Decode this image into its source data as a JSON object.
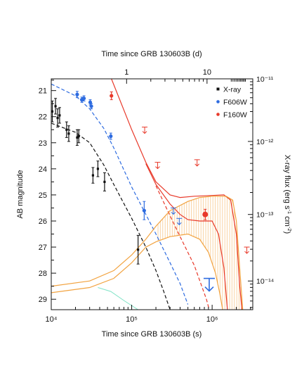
{
  "chart_data": {
    "type": "scatter",
    "title": "",
    "xlabel_bottom": "Time since GRB 130603B (s)",
    "xlabel_top": "Time since GRB 130603B (d)",
    "ylabel_left": "AB magnitude",
    "ylabel_right_parts": [
      "X-ray flux (erg s",
      "-1",
      " cm",
      "-2",
      ")"
    ],
    "x_scale": "log",
    "xlim": [
      10000,
      3200000
    ],
    "ylim_mag": [
      29.4,
      20.55
    ],
    "x_ticks": [
      {
        "value": 10000,
        "label": "10⁴"
      },
      {
        "value": 100000,
        "label": "10⁵"
      },
      {
        "value": 1000000,
        "label": "10⁶"
      }
    ],
    "x_top_ticks": [
      {
        "value": 86400,
        "label": "1"
      },
      {
        "value": 864000,
        "label": "10"
      }
    ],
    "y_ticks": [
      21,
      22,
      23,
      24,
      25,
      26,
      27,
      28,
      29
    ],
    "right_ticks": [
      {
        "mag": 20.55,
        "label": "10⁻¹¹"
      },
      {
        "mag": 22.95,
        "label": "10⁻¹²"
      },
      {
        "mag": 25.75,
        "label": "10⁻¹³"
      },
      {
        "mag": 28.3,
        "label": "10⁻¹⁴"
      }
    ],
    "colors": {
      "xray": "#111111",
      "f606w": "#2d6be0",
      "f160w": "#e8392a",
      "orange": "#f2a340",
      "cyan": "#7fe3c6"
    },
    "legend": {
      "position": "top-right",
      "items": [
        {
          "label": "X-ray",
          "color": "#111111"
        },
        {
          "label": "F606W",
          "color": "#2d6be0"
        },
        {
          "label": "F160W",
          "color": "#e8392a"
        }
      ]
    },
    "series": [
      {
        "name": "X-ray",
        "color": "#111111",
        "points": [
          {
            "x": 10300,
            "y": 21.8,
            "yerr": 0.4
          },
          {
            "x": 11300,
            "y": 21.6,
            "yerr": 0.3
          },
          {
            "x": 12000,
            "y": 22.05,
            "yerr": 0.35
          },
          {
            "x": 12700,
            "y": 21.95,
            "yerr": 0.3
          },
          {
            "x": 15500,
            "y": 22.5,
            "yerr": 0.3
          },
          {
            "x": 16500,
            "y": 22.65,
            "yerr": 0.3
          },
          {
            "x": 21000,
            "y": 22.8,
            "yerr": 0.3
          },
          {
            "x": 22000,
            "y": 22.75,
            "yerr": 0.25
          },
          {
            "x": 33000,
            "y": 24.25,
            "yerr": 0.3
          },
          {
            "x": 38000,
            "y": 24.0,
            "yerr": 0.3
          },
          {
            "x": 46000,
            "y": 24.5,
            "yerr": 0.35
          },
          {
            "x": 120000,
            "y": 27.1,
            "yerr": 0.55
          }
        ]
      },
      {
        "name": "F606W",
        "color": "#2d6be0",
        "points": [
          {
            "x": 21000,
            "y": 21.15,
            "yerr": 0.12
          },
          {
            "x": 24000,
            "y": 21.35,
            "yerr": 0.1
          },
          {
            "x": 25500,
            "y": 21.3,
            "yerr": 0.1
          },
          {
            "x": 30500,
            "y": 21.45,
            "yerr": 0.1
          },
          {
            "x": 31500,
            "y": 21.6,
            "yerr": 0.1
          },
          {
            "x": 55000,
            "y": 22.75,
            "yerr": 0.12
          },
          {
            "x": 143000,
            "y": 25.6,
            "yerr": 0.35
          }
        ],
        "upper_limits": [
          {
            "x": 330000,
            "y": 25.5
          },
          {
            "x": 390000,
            "y": 25.9
          },
          {
            "x": 920000,
            "y": 28.2,
            "large": true
          }
        ]
      },
      {
        "name": "F160W",
        "color": "#e8392a",
        "points": [
          {
            "x": 56000,
            "y": 21.2,
            "yerr": 0.15
          },
          {
            "x": 820000,
            "y": 25.75,
            "yerr": 0.2,
            "large": true
          }
        ],
        "upper_limits": [
          {
            "x": 145000,
            "y": 22.4
          },
          {
            "x": 210000,
            "y": 23.75
          },
          {
            "x": 650000,
            "y": 23.65
          },
          {
            "x": 2700000,
            "y": 27.0
          }
        ]
      }
    ],
    "model_curves": [
      {
        "color": "#2d6be0",
        "dash": true,
        "points": [
          [
            10000,
            20.75
          ],
          [
            20000,
            21.2
          ],
          [
            30000,
            21.7
          ],
          [
            45000,
            22.45
          ],
          [
            60000,
            23.2
          ],
          [
            100000,
            24.7
          ],
          [
            200000,
            26.5
          ],
          [
            300000,
            27.6
          ],
          [
            400000,
            28.4
          ],
          [
            500000,
            29.2
          ]
        ]
      },
      {
        "color": "#111111",
        "dash": true,
        "points": [
          [
            10000,
            22.25
          ],
          [
            20000,
            22.6
          ],
          [
            30000,
            23.0
          ],
          [
            45000,
            23.85
          ],
          [
            60000,
            24.6
          ],
          [
            100000,
            25.9
          ],
          [
            150000,
            27.0
          ],
          [
            200000,
            27.9
          ],
          [
            250000,
            28.7
          ],
          [
            300000,
            29.4
          ]
        ]
      },
      {
        "color": "#e8392a",
        "dash": true,
        "points": [
          [
            200000,
            24.65
          ],
          [
            300000,
            25.8
          ],
          [
            400000,
            26.6
          ],
          [
            600000,
            27.7
          ],
          [
            850000,
            29.0
          ],
          [
            920000,
            29.4
          ]
        ]
      },
      {
        "color": "#e8392a",
        "dash": false,
        "points": [
          [
            56000,
            20.55
          ],
          [
            100000,
            22.5
          ],
          [
            150000,
            23.75
          ],
          [
            200000,
            24.5
          ],
          [
            300000,
            25.0
          ],
          [
            400000,
            25.1
          ],
          [
            600000,
            25.05
          ],
          [
            1000000,
            25.02
          ],
          [
            1400000,
            25.0
          ],
          [
            1700000,
            25.2
          ],
          [
            2000000,
            26.5
          ],
          [
            2200000,
            28.5
          ],
          [
            2350000,
            29.4
          ]
        ]
      },
      {
        "color": "#e8392a",
        "dash": false,
        "points": [
          [
            150000,
            23.8
          ],
          [
            200000,
            24.6
          ],
          [
            300000,
            25.35
          ],
          [
            400000,
            25.75
          ],
          [
            500000,
            25.95
          ],
          [
            700000,
            26.0
          ],
          [
            1000000,
            26.0
          ],
          [
            1200000,
            26.5
          ],
          [
            1400000,
            27.8
          ],
          [
            1550000,
            29.4
          ]
        ]
      },
      {
        "color": "#f2a340",
        "dash": false,
        "points": [
          [
            10000,
            28.75
          ],
          [
            30000,
            28.55
          ],
          [
            60000,
            28.2
          ],
          [
            100000,
            27.6
          ],
          [
            150000,
            27.0
          ],
          [
            200000,
            26.8
          ],
          [
            300000,
            26.6
          ],
          [
            500000,
            26.5
          ],
          [
            700000,
            26.7
          ],
          [
            900000,
            27.2
          ],
          [
            1100000,
            28.0
          ],
          [
            1250000,
            28.8
          ],
          [
            1350000,
            29.4
          ]
        ]
      },
      {
        "color": "#f2a340",
        "dash": false,
        "points": [
          [
            10000,
            28.5
          ],
          [
            30000,
            28.3
          ],
          [
            60000,
            27.9
          ],
          [
            100000,
            27.3
          ],
          [
            150000,
            26.7
          ],
          [
            200000,
            26.2
          ],
          [
            300000,
            25.6
          ],
          [
            500000,
            25.25
          ],
          [
            700000,
            25.1
          ],
          [
            1000000,
            25.05
          ],
          [
            1500000,
            25.05
          ],
          [
            1800000,
            25.2
          ],
          [
            2000000,
            26.0
          ],
          [
            2200000,
            27.8
          ],
          [
            2400000,
            29.4
          ]
        ]
      },
      {
        "color": "#7fe3c6",
        "dash": false,
        "points": [
          [
            38000,
            28.55
          ],
          [
            55000,
            28.7
          ],
          [
            80000,
            29.05
          ],
          [
            120000,
            29.4
          ]
        ]
      }
    ],
    "shaded_band": {
      "color": "#f2a340",
      "upper": [
        [
          200000,
          26.2
        ],
        [
          300000,
          25.6
        ],
        [
          500000,
          25.25
        ],
        [
          700000,
          25.1
        ],
        [
          1000000,
          25.05
        ],
        [
          1500000,
          25.05
        ],
        [
          1800000,
          25.2
        ],
        [
          2000000,
          26.0
        ],
        [
          2200000,
          27.8
        ],
        [
          2400000,
          29.4
        ]
      ],
      "lower": [
        [
          200000,
          26.8
        ],
        [
          300000,
          26.6
        ],
        [
          500000,
          26.5
        ],
        [
          700000,
          26.7
        ],
        [
          900000,
          27.2
        ],
        [
          1100000,
          28.0
        ],
        [
          1250000,
          28.8
        ],
        [
          1350000,
          29.4
        ]
      ]
    }
  }
}
